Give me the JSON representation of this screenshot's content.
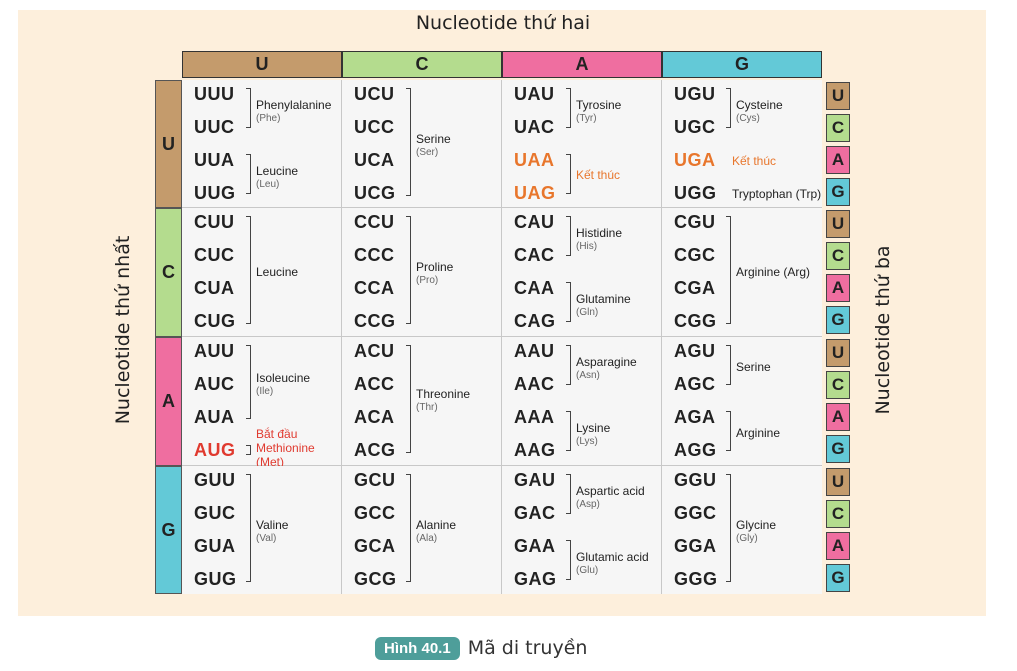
{
  "header": {
    "top_label": "Nucleotide thứ hai",
    "left_label": "Nucleotide thứ nhất",
    "right_label": "Nucleotide thứ ba"
  },
  "columns": [
    "U",
    "C",
    "A",
    "G"
  ],
  "rows": [
    "U",
    "C",
    "A",
    "G"
  ],
  "third": [
    "U",
    "C",
    "A",
    "G"
  ],
  "colors": {
    "U": "#c49b6c",
    "C": "#b4dc8e",
    "A": "#ef6ea0",
    "G": "#63c9d7",
    "panel": "#fdefdc",
    "caption": "#4e9e9a",
    "stop": "#e8762c",
    "start": "#e03a2f"
  },
  "cells": [
    [
      {
        "codons": [
          "UUU",
          "UUC",
          "UUA",
          "UUG"
        ],
        "groups": [
          {
            "name": "Phenylalanine",
            "abbr": "(Phe)"
          },
          {
            "name": "Leucine",
            "abbr": "(Leu)"
          }
        ]
      },
      {
        "codons": [
          "UCU",
          "UCC",
          "UCA",
          "UCG"
        ],
        "groups": [
          {
            "name": "Serine",
            "abbr": "(Ser)"
          }
        ]
      },
      {
        "codons": [
          "UAU",
          "UAC",
          "UAA",
          "UAG"
        ],
        "groups": [
          {
            "name": "Tyrosine",
            "abbr": "(Tyr)"
          },
          {
            "name": "Kết thúc",
            "abbr": ""
          }
        ]
      },
      {
        "codons": [
          "UGU",
          "UGC",
          "UGA",
          "UGG"
        ],
        "groups": [
          {
            "name": "Cysteine",
            "abbr": "(Cys)"
          },
          {
            "name": "Kết thúc",
            "abbr": ""
          },
          {
            "name": "Tryptophan (Trp)",
            "abbr": ""
          }
        ]
      }
    ],
    [
      {
        "codons": [
          "CUU",
          "CUC",
          "CUA",
          "CUG"
        ],
        "groups": [
          {
            "name": "Leucine",
            "abbr": ""
          }
        ]
      },
      {
        "codons": [
          "CCU",
          "CCC",
          "CCA",
          "CCG"
        ],
        "groups": [
          {
            "name": "Proline",
            "abbr": "(Pro)"
          }
        ]
      },
      {
        "codons": [
          "CAU",
          "CAC",
          "CAA",
          "CAG"
        ],
        "groups": [
          {
            "name": "Histidine",
            "abbr": "(His)"
          },
          {
            "name": "Glutamine",
            "abbr": "(Gln)"
          }
        ]
      },
      {
        "codons": [
          "CGU",
          "CGC",
          "CGA",
          "CGG"
        ],
        "groups": [
          {
            "name": "Arginine (Arg)",
            "abbr": ""
          }
        ]
      }
    ],
    [
      {
        "codons": [
          "AUU",
          "AUC",
          "AUA",
          "AUG"
        ],
        "groups": [
          {
            "name": "Isoleucine",
            "abbr": "(Ile)"
          },
          {
            "name": "Bắt đầu",
            "abbr": ""
          },
          {
            "name": "Methionine",
            "abbr": "(Met)"
          }
        ]
      },
      {
        "codons": [
          "ACU",
          "ACC",
          "ACA",
          "ACG"
        ],
        "groups": [
          {
            "name": "Threonine",
            "abbr": "(Thr)"
          }
        ]
      },
      {
        "codons": [
          "AAU",
          "AAC",
          "AAA",
          "AAG"
        ],
        "groups": [
          {
            "name": "Asparagine",
            "abbr": "(Asn)"
          },
          {
            "name": "Lysine",
            "abbr": "(Lys)"
          }
        ]
      },
      {
        "codons": [
          "AGU",
          "AGC",
          "AGA",
          "AGG"
        ],
        "groups": [
          {
            "name": "Serine",
            "abbr": ""
          },
          {
            "name": "Arginine",
            "abbr": ""
          }
        ]
      }
    ],
    [
      {
        "codons": [
          "GUU",
          "GUC",
          "GUA",
          "GUG"
        ],
        "groups": [
          {
            "name": "Valine",
            "abbr": "(Val)"
          }
        ]
      },
      {
        "codons": [
          "GCU",
          "GCC",
          "GCA",
          "GCG"
        ],
        "groups": [
          {
            "name": "Alanine",
            "abbr": "(Ala)"
          }
        ]
      },
      {
        "codons": [
          "GAU",
          "GAC",
          "GAA",
          "GAG"
        ],
        "groups": [
          {
            "name": "Aspartic acid",
            "abbr": "(Asp)"
          },
          {
            "name": "Glutamic acid",
            "abbr": "(Glu)"
          }
        ]
      },
      {
        "codons": [
          "GGU",
          "GGC",
          "GGA",
          "GGG"
        ],
        "groups": [
          {
            "name": "Glycine",
            "abbr": "(Gly)"
          }
        ]
      }
    ]
  ],
  "caption": {
    "badge": "Hình 40.1",
    "text": "Mã di truyền"
  }
}
